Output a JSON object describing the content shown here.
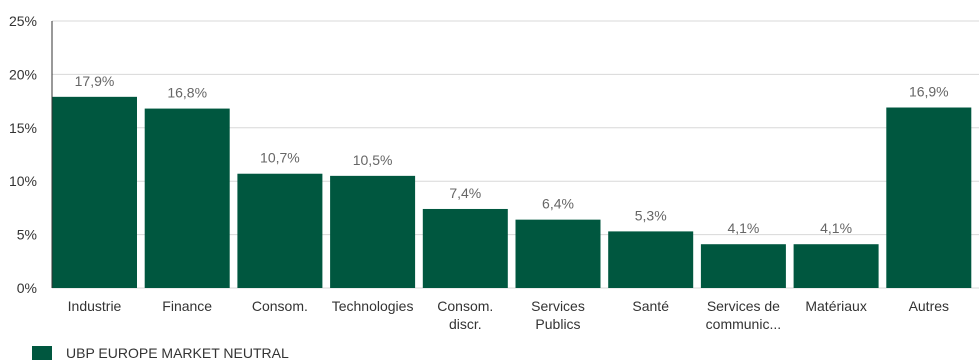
{
  "chart_data": {
    "type": "bar",
    "categories": [
      [
        "Industrie"
      ],
      [
        "Finance"
      ],
      [
        "Consom."
      ],
      [
        "Technologies"
      ],
      [
        "Consom.",
        "discr."
      ],
      [
        "Services",
        "Publics"
      ],
      [
        "Santé"
      ],
      [
        "Services de",
        "communic..."
      ],
      [
        "Matériaux"
      ],
      [
        "Autres"
      ]
    ],
    "series": [
      {
        "name": "UBP EUROPE MARKET NEUTRAL",
        "values": [
          17.9,
          16.8,
          10.7,
          10.5,
          7.4,
          6.4,
          5.3,
          4.1,
          4.1,
          16.9
        ],
        "labels": [
          "17,9%",
          "16,8%",
          "10,7%",
          "10,5%",
          "7,4%",
          "6,4%",
          "5,3%",
          "4,1%",
          "4,1%",
          "16,9%"
        ],
        "color": "#00573f"
      }
    ],
    "y_ticks": [
      {
        "value": 0,
        "label": "0%"
      },
      {
        "value": 5,
        "label": "5%"
      },
      {
        "value": 10,
        "label": "10%"
      },
      {
        "value": 15,
        "label": "15%"
      },
      {
        "value": 20,
        "label": "20%"
      },
      {
        "value": 25,
        "label": "25%"
      }
    ],
    "ylim": [
      0,
      25
    ],
    "grid": true,
    "legend_position": "bottom-left"
  }
}
